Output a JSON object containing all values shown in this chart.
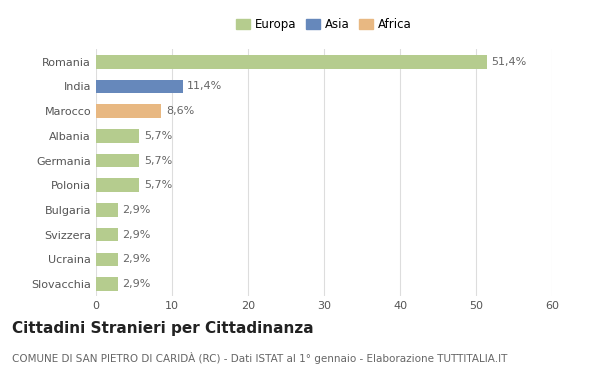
{
  "countries": [
    "Romania",
    "India",
    "Marocco",
    "Albania",
    "Germania",
    "Polonia",
    "Bulgaria",
    "Svizzera",
    "Ucraina",
    "Slovacchia"
  ],
  "values": [
    51.4,
    11.4,
    8.6,
    5.7,
    5.7,
    5.7,
    2.9,
    2.9,
    2.9,
    2.9
  ],
  "labels": [
    "51,4%",
    "11,4%",
    "8,6%",
    "5,7%",
    "5,7%",
    "5,7%",
    "2,9%",
    "2,9%",
    "2,9%",
    "2,9%"
  ],
  "continents": [
    "Europa",
    "Asia",
    "Africa",
    "Europa",
    "Europa",
    "Europa",
    "Europa",
    "Europa",
    "Europa",
    "Europa"
  ],
  "colors": {
    "Europa": "#b5cc8e",
    "Asia": "#6688bb",
    "Africa": "#e8b882"
  },
  "xlim": [
    0,
    60
  ],
  "xticks": [
    0,
    10,
    20,
    30,
    40,
    50,
    60
  ],
  "title": "Cittadini Stranieri per Cittadinanza",
  "subtitle": "COMUNE DI SAN PIETRO DI CARIDÀ (RC) - Dati ISTAT al 1° gennaio - Elaborazione TUTTITALIA.IT",
  "background_color": "#ffffff",
  "grid_color": "#dddddd",
  "bar_height": 0.55,
  "title_fontsize": 11,
  "subtitle_fontsize": 7.5,
  "label_fontsize": 8,
  "tick_fontsize": 8,
  "legend_fontsize": 8.5
}
